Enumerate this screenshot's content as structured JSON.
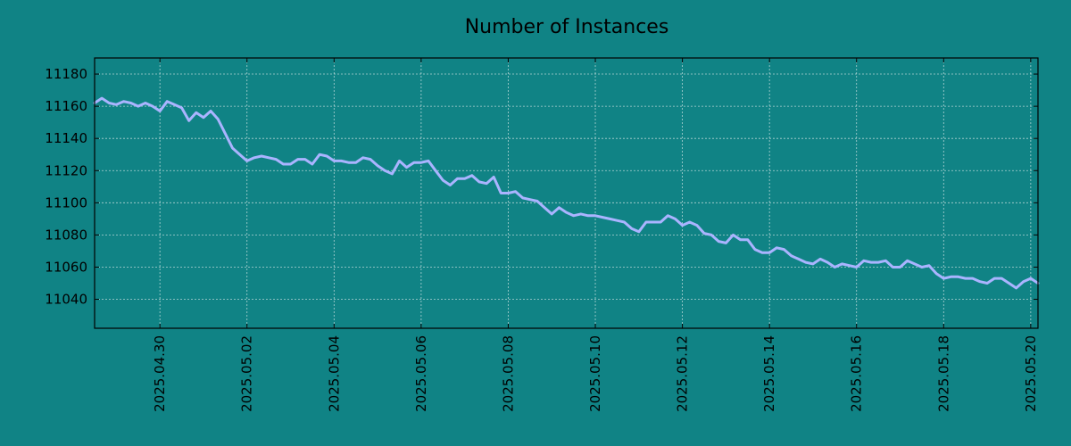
{
  "chart_data": {
    "type": "line",
    "title": "Number of Instances",
    "xlabel": "",
    "ylabel": "",
    "x_start": "2025-04-28T12:00",
    "x_end": "2025-05-20T04:00",
    "xlim": [
      "2025-04-28T12:00",
      "2025-05-20T04:00"
    ],
    "ylim": [
      11022,
      11190
    ],
    "x_ticks": [
      "2025.04.30",
      "2025.05.02",
      "2025.05.04",
      "2025.05.06",
      "2025.05.08",
      "2025.05.10",
      "2025.05.12",
      "2025.05.14",
      "2025.05.16",
      "2025.05.18",
      "2025.05.20"
    ],
    "x_tick_dates": [
      "2025-04-30",
      "2025-05-02",
      "2025-05-04",
      "2025-05-06",
      "2025-05-08",
      "2025-05-10",
      "2025-05-12",
      "2025-05-14",
      "2025-05-16",
      "2025-05-18",
      "2025-05-20"
    ],
    "y_ticks": [
      11040,
      11060,
      11080,
      11100,
      11120,
      11140,
      11160,
      11180
    ],
    "grid": true,
    "legend": "none",
    "series": [
      {
        "color": "#aab4ff",
        "values": [
          11162,
          11165,
          11162,
          11161,
          11163,
          11162,
          11160,
          11162,
          11160,
          11157,
          11163,
          11161,
          11159,
          11151,
          11156,
          11153,
          11157,
          11152,
          11143,
          11134,
          11130,
          11126,
          11128,
          11129,
          11128,
          11127,
          11124,
          11124,
          11127,
          11127,
          11124,
          11130,
          11129,
          11126,
          11126,
          11125,
          11125,
          11128,
          11127,
          11123,
          11120,
          11118,
          11126,
          11122,
          11125,
          11125,
          11126,
          11120,
          11114,
          11111,
          11115,
          11115,
          11117,
          11113,
          11112,
          11116,
          11106,
          11106,
          11107,
          11103,
          11102,
          11101,
          11097,
          11093,
          11097,
          11094,
          11092,
          11093,
          11092,
          11092,
          11091,
          11090,
          11089,
          11088,
          11084,
          11082,
          11088,
          11088,
          11088,
          11092,
          11090,
          11086,
          11088,
          11086,
          11081,
          11080,
          11076,
          11075,
          11080,
          11077,
          11077,
          11071,
          11069,
          11069,
          11072,
          11071,
          11067,
          11065,
          11063,
          11062,
          11065,
          11063,
          11060,
          11062,
          11061,
          11060,
          11064,
          11063,
          11063,
          11064,
          11060,
          11060,
          11064,
          11062,
          11060,
          11061,
          11056,
          11053,
          11054,
          11054,
          11053,
          11053,
          11051,
          11050,
          11053,
          11053,
          11050,
          11047,
          11051,
          11053,
          11050
        ]
      }
    ]
  }
}
